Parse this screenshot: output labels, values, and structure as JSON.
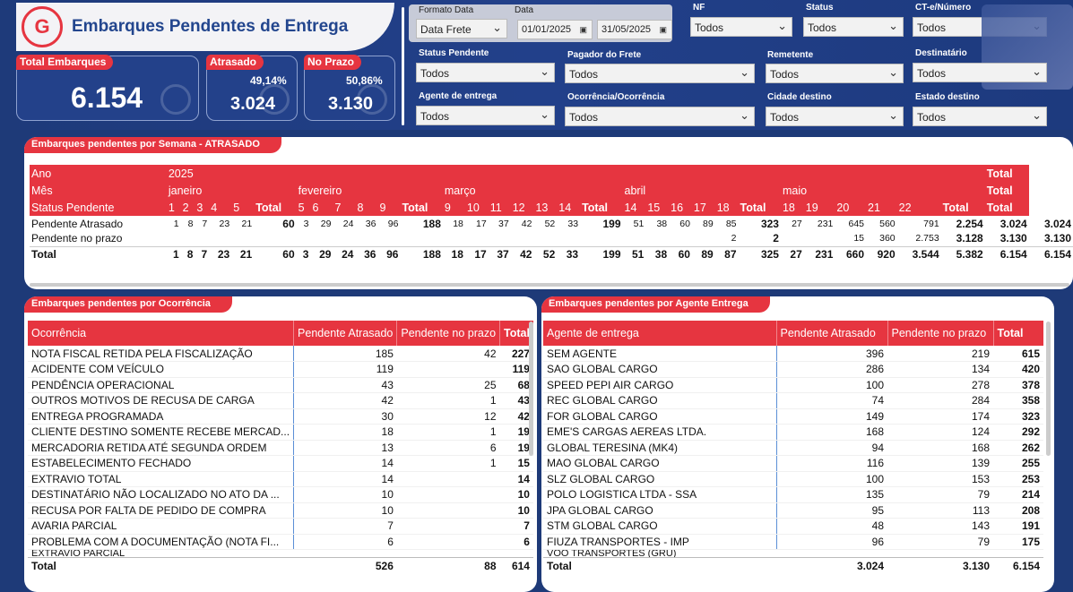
{
  "header": {
    "title": "Embarques Pendentes de Entrega"
  },
  "kpis": {
    "total": {
      "label": "Total Embarques",
      "value": "6.154"
    },
    "atrasado": {
      "label": "Atrasado",
      "pct": "49,14%",
      "value": "3.024"
    },
    "prazo": {
      "label": "No Prazo",
      "pct": "50,86%",
      "value": "3.130"
    }
  },
  "filters": {
    "formato_label": "Formato Data",
    "formato_value": "Data Frete",
    "data_label": "Data",
    "data_start": "01/01/2025",
    "data_end": "31/05/2025",
    "nf": {
      "label": "NF",
      "value": "Todos"
    },
    "status": {
      "label": "Status",
      "value": "Todos"
    },
    "cte": {
      "label": "CT-e/Número",
      "value": "Todos"
    },
    "status_pendente": {
      "label": "Status Pendente",
      "value": "Todos"
    },
    "pagador": {
      "label": "Pagador do Frete",
      "value": "Todos"
    },
    "remetente": {
      "label": "Remetente",
      "value": "Todos"
    },
    "destinatario": {
      "label": "Destinatário",
      "value": "Todos"
    },
    "agente": {
      "label": "Agente de entrega",
      "value": "Todos"
    },
    "ocorrencia": {
      "label": "Ocorrência/Ocorrência",
      "value": "Todos"
    },
    "cidade": {
      "label": "Cidade destino",
      "value": "Todos"
    },
    "estado": {
      "label": "Estado destino",
      "value": "Todos"
    }
  },
  "matrix": {
    "title": "Embarques pendentes por Semana - ATRASADO",
    "ano_label": "Ano",
    "ano": "2025",
    "mes_label": "Mês",
    "status_label": "Status Pendente",
    "total_label": "Total",
    "months": [
      "janeiro",
      "fevereiro",
      "março",
      "abril",
      "maio"
    ],
    "weeks": [
      "1",
      "2",
      "3",
      "4",
      "5",
      "Total",
      "5",
      "6",
      "7",
      "8",
      "9",
      "Total",
      "9",
      "10",
      "11",
      "12",
      "13",
      "14",
      "Total",
      "14",
      "15",
      "16",
      "17",
      "18",
      "Total",
      "18",
      "19",
      "20",
      "21",
      "22",
      "Total",
      "Total"
    ],
    "rows": [
      {
        "label": "Pendente Atrasado",
        "cells": [
          "1",
          "8",
          "7",
          "23",
          "21",
          "60",
          "3",
          "29",
          "24",
          "36",
          "96",
          "188",
          "18",
          "17",
          "37",
          "42",
          "52",
          "33",
          "199",
          "51",
          "38",
          "60",
          "89",
          "85",
          "323",
          "27",
          "231",
          "645",
          "560",
          "791",
          "2.254",
          "3.024"
        ],
        "grand": "3.024"
      },
      {
        "label": "Pendente no prazo",
        "cells": [
          "",
          "",
          "",
          "",
          "",
          "",
          "",
          "",
          "",
          "",
          "",
          "",
          "",
          "",
          "",
          "",
          "",
          "",
          "",
          "",
          "",
          "",
          "",
          "2",
          "2",
          "",
          "",
          "15",
          "360",
          "2.753",
          "3.128",
          "3.130"
        ],
        "grand": "3.130"
      },
      {
        "label": "Total",
        "cells": [
          "1",
          "8",
          "7",
          "23",
          "21",
          "60",
          "3",
          "29",
          "24",
          "36",
          "96",
          "188",
          "18",
          "17",
          "37",
          "42",
          "52",
          "33",
          "199",
          "51",
          "38",
          "60",
          "89",
          "87",
          "325",
          "27",
          "231",
          "660",
          "920",
          "3.544",
          "5.382",
          "6.154"
        ],
        "grand": "6.154"
      }
    ]
  },
  "ocorrencia": {
    "title": "Embarques pendentes por Ocorrência",
    "headers": [
      "Ocorrência",
      "Pendente Atrasado",
      "Pendente no prazo",
      "Total"
    ],
    "rows": [
      [
        "NOTA FISCAL RETIDA PELA FISCALIZAÇÃO",
        "185",
        "42",
        "227"
      ],
      [
        "ACIDENTE COM VEÍCULO",
        "119",
        "",
        "119"
      ],
      [
        "PENDÊNCIA OPERACIONAL",
        "43",
        "25",
        "68"
      ],
      [
        "OUTROS MOTIVOS DE RECUSA DE CARGA",
        "42",
        "1",
        "43"
      ],
      [
        "ENTREGA PROGRAMADA",
        "30",
        "12",
        "42"
      ],
      [
        "CLIENTE DESTINO SOMENTE RECEBE MERCAD...",
        "18",
        "1",
        "19"
      ],
      [
        "MERCADORIA RETIDA ATÉ SEGUNDA ORDEM",
        "13",
        "6",
        "19"
      ],
      [
        "ESTABELECIMENTO FECHADO",
        "14",
        "1",
        "15"
      ],
      [
        "EXTRAVIO TOTAL",
        "14",
        "",
        "14"
      ],
      [
        "DESTINATÁRIO NÃO LOCALIZADO NO ATO DA ...",
        "10",
        "",
        "10"
      ],
      [
        "RECUSA POR FALTA DE PEDIDO DE COMPRA",
        "10",
        "",
        "10"
      ],
      [
        "AVARIA PARCIAL",
        "7",
        "",
        "7"
      ],
      [
        "PROBLEMA COM A DOCUMENTAÇÃO (NOTA FI...",
        "6",
        "",
        "6"
      ]
    ],
    "partial": "EXTRAVIO PARCIAL",
    "total": [
      "Total",
      "526",
      "88",
      "614"
    ]
  },
  "agente": {
    "title": "Embarques pendentes por Agente Entrega",
    "headers": [
      "Agente de entrega",
      "Pendente Atrasado",
      "Pendente no prazo",
      "Total"
    ],
    "rows": [
      [
        "SEM AGENTE",
        "396",
        "219",
        "615"
      ],
      [
        "SAO GLOBAL CARGO",
        "286",
        "134",
        "420"
      ],
      [
        "SPEED PEPI AIR CARGO",
        "100",
        "278",
        "378"
      ],
      [
        "REC GLOBAL CARGO",
        "74",
        "284",
        "358"
      ],
      [
        "FOR GLOBAL CARGO",
        "149",
        "174",
        "323"
      ],
      [
        "EME'S CARGAS AEREAS LTDA.",
        "168",
        "124",
        "292"
      ],
      [
        "GLOBAL TERESINA (MK4)",
        "94",
        "168",
        "262"
      ],
      [
        "MAO GLOBAL CARGO",
        "116",
        "139",
        "255"
      ],
      [
        "SLZ GLOBAL  CARGO",
        "100",
        "153",
        "253"
      ],
      [
        "POLO LOGISTICA LTDA - SSA",
        "135",
        "79",
        "214"
      ],
      [
        "JPA GLOBAL CARGO",
        "95",
        "113",
        "208"
      ],
      [
        "STM GLOBAL CARGO",
        "48",
        "143",
        "191"
      ],
      [
        "FIUZA TRANSPORTES - IMP",
        "96",
        "79",
        "175"
      ]
    ],
    "partial": "VOO TRANSPORTES (GRU)",
    "total": [
      "Total",
      "3.024",
      "3.130",
      "6.154"
    ]
  }
}
